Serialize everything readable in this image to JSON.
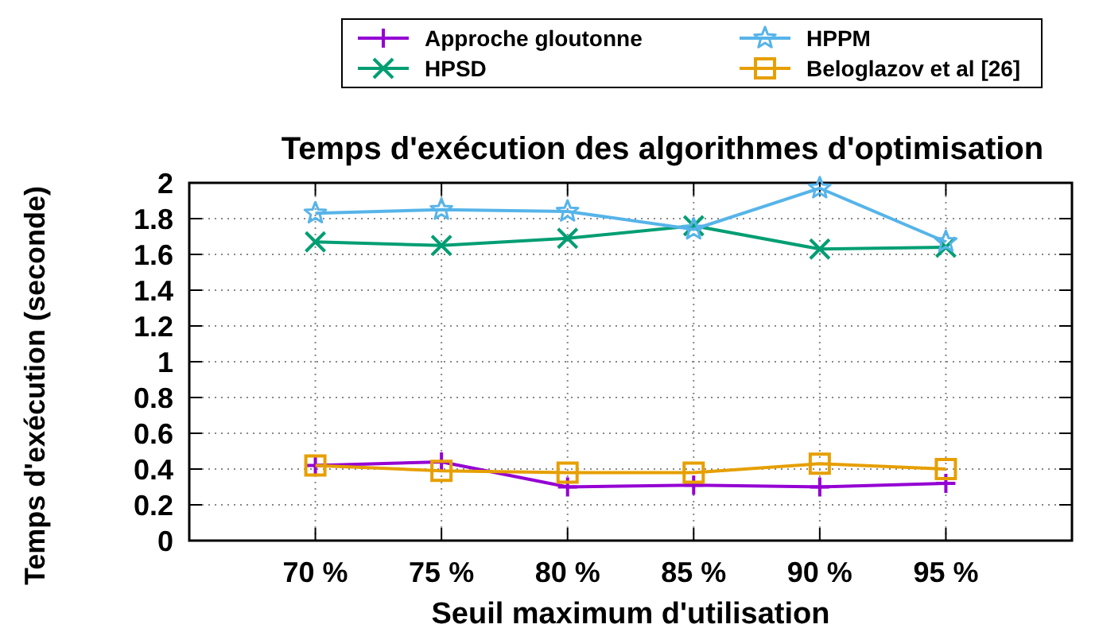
{
  "chart_data": {
    "type": "line",
    "title": "Temps d'exécution des algorithmes d'optimisation",
    "xlabel": "Seuil maximum d'utilisation",
    "ylabel": "Temps d'exécution (seconde)",
    "categories": [
      "70 %",
      "75 %",
      "80 %",
      "85 %",
      "90 %",
      "95 %"
    ],
    "series": [
      {
        "name": "Approche gloutonne",
        "color": "#9400d3",
        "marker": "cross",
        "values": [
          0.42,
          0.44,
          0.3,
          0.31,
          0.3,
          0.32
        ]
      },
      {
        "name": "HPSD",
        "color": "#009e73",
        "marker": "x",
        "values": [
          1.67,
          1.65,
          1.69,
          1.76,
          1.63,
          1.64
        ]
      },
      {
        "name": "HPPM",
        "color": "#56b4e9",
        "marker": "star",
        "values": [
          1.83,
          1.85,
          1.84,
          1.74,
          1.97,
          1.67
        ]
      },
      {
        "name": "Beloglazov et al [26]",
        "color": "#e69f00",
        "marker": "square",
        "values": [
          0.42,
          0.39,
          0.38,
          0.38,
          0.43,
          0.4
        ]
      }
    ],
    "ylim": [
      0,
      2
    ],
    "yticks": [
      0,
      0.2,
      0.4,
      0.6,
      0.8,
      1,
      1.2,
      1.4,
      1.6,
      1.8,
      2
    ],
    "grid": true,
    "legend": "top right",
    "line_style": "solid"
  }
}
